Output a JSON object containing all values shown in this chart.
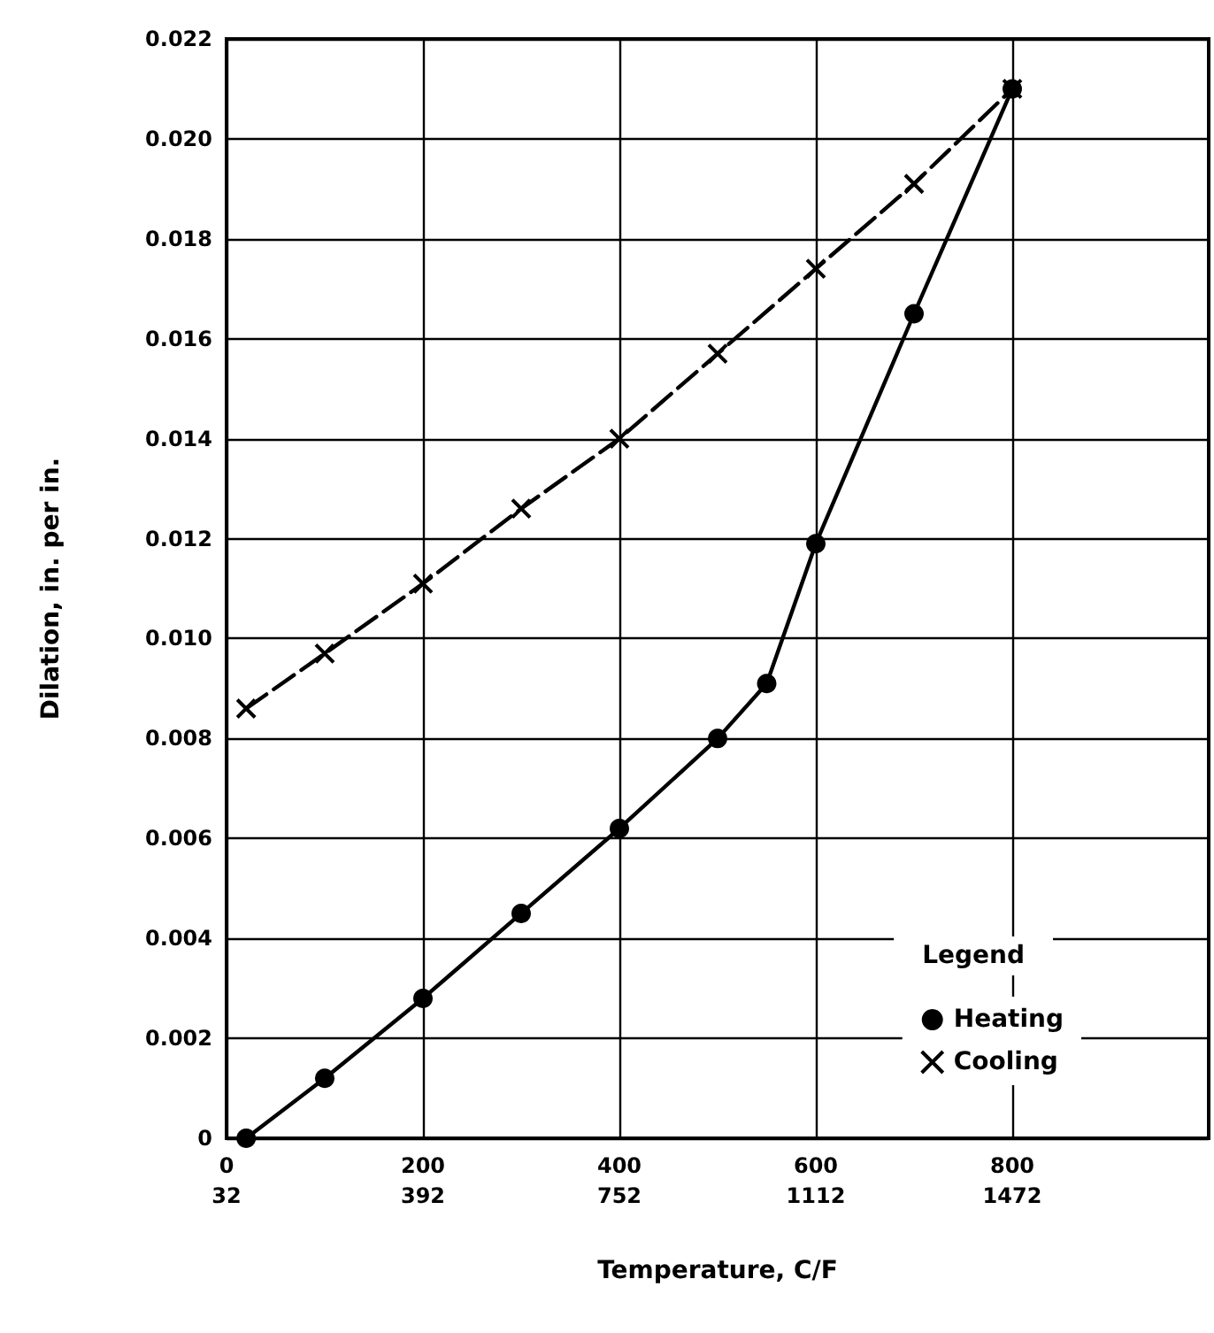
{
  "chart_data": {
    "type": "line",
    "xlabel": "Temperature, C/F",
    "ylabel": "Dilation, in. per in.",
    "legend_title": "Legend",
    "xlim": [
      0,
      1000
    ],
    "xticks": [
      0,
      200,
      400,
      600,
      800
    ],
    "x2lim": [
      32,
      1832
    ],
    "x2ticks": [
      32,
      392,
      752,
      1112,
      1472
    ],
    "ylim": [
      0,
      0.022
    ],
    "yticks": [
      0,
      0.002,
      0.004,
      0.006,
      0.008,
      {
        "value": 0.01,
        "label": "0.010"
      },
      0.012,
      0.014,
      0.016,
      0.018,
      {
        "value": 0.02,
        "label": "0.020"
      },
      0.022
    ],
    "grid": true,
    "legend": "bottom right",
    "series": [
      {
        "name": "Heating",
        "color": "#000000",
        "marker": "circle",
        "line_style": "solid",
        "x": [
          20,
          100,
          200,
          300,
          400,
          500,
          550,
          600,
          700,
          800
        ],
        "values": [
          0,
          0.0012,
          0.0028,
          0.0045,
          0.0062,
          0.008,
          0.0091,
          0.0119,
          0.0165,
          0.021
        ]
      },
      {
        "name": "Cooling",
        "color": "#000000",
        "marker": "cross",
        "line_style": "dashed",
        "x": [
          20,
          100,
          200,
          300,
          400,
          500,
          600,
          700,
          800
        ],
        "values": [
          0.0086,
          0.0097,
          0.0111,
          0.0126,
          0.014,
          0.0157,
          0.0174,
          0.0191,
          0.021
        ]
      }
    ]
  }
}
